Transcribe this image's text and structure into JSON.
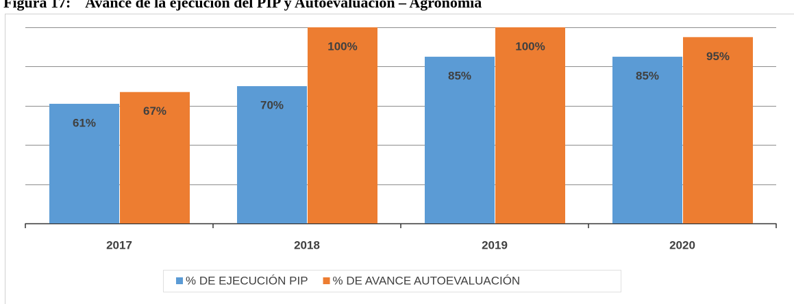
{
  "chart_data": {
    "type": "bar",
    "title": "Figura 17:    Avance de la ejecución del PIP y Autoevaluación – Agronomía",
    "categories": [
      "2017",
      "2018",
      "2019",
      "2020"
    ],
    "series": [
      {
        "name": "% DE EJECUCIÓN PIP",
        "color": "#5b9bd5",
        "values": [
          61,
          70,
          85,
          85
        ],
        "value_labels": [
          "61%",
          "70%",
          "85%",
          "85%"
        ]
      },
      {
        "name": "% DE AVANCE AUTOEVALUACIÓN",
        "color": "#ed7d31",
        "values": [
          67,
          100,
          100,
          95
        ],
        "value_labels": [
          "67%",
          "100%",
          "100%",
          "95%"
        ]
      }
    ],
    "ylim": [
      0,
      100
    ],
    "yticks": [
      0,
      20,
      40,
      60,
      80,
      100
    ],
    "grid": true,
    "legend": "bottom"
  }
}
